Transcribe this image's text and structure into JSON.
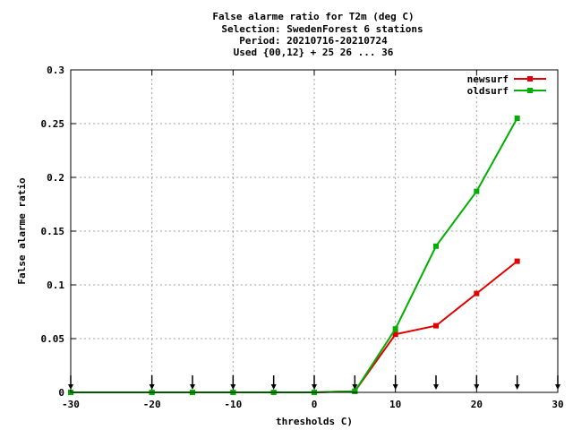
{
  "chart_data": {
    "type": "line",
    "title_lines": [
      "False alarme ratio  for T2m (deg C)",
      "Selection: SwedenForest      6 stations",
      "Period: 20210716-20210724",
      "Used {00,12} + 25 26 ... 36"
    ],
    "xlabel": "thresholds C)",
    "ylabel": "False alarme ratio",
    "xlim": [
      -30,
      30
    ],
    "ylim": [
      0,
      0.3
    ],
    "x_ticks": [
      "-30",
      "-20",
      "-10",
      "0",
      "10",
      "20",
      "30"
    ],
    "y_ticks": [
      "0",
      "0.05",
      "0.1",
      "0.15",
      "0.2",
      "0.25",
      "0.3"
    ],
    "x_tick_values": [
      -30,
      -20,
      -10,
      0,
      10,
      20,
      30
    ],
    "y_tick_values": [
      0,
      0.05,
      0.1,
      0.15,
      0.2,
      0.25,
      0.3
    ],
    "grid": true,
    "legend_position": "top-right",
    "threshold_markers_x": [
      -30,
      -20,
      -15,
      -10,
      -5,
      0,
      5,
      10,
      15,
      20,
      25,
      30
    ],
    "series": [
      {
        "name": "newsurf",
        "color": "#e00000",
        "x": [
          -30,
          -20,
          -15,
          -10,
          -5,
          0,
          5,
          10,
          15,
          20,
          25
        ],
        "values": [
          0,
          0,
          0,
          0,
          0,
          0,
          0.001,
          0.054,
          0.062,
          0.092,
          0.122
        ]
      },
      {
        "name": "oldsurf",
        "color": "#00b000",
        "x": [
          -30,
          -20,
          -15,
          -10,
          -5,
          0,
          5,
          10,
          15,
          20,
          25
        ],
        "values": [
          0,
          0,
          0,
          0,
          0,
          0,
          0.001,
          0.059,
          0.136,
          0.187,
          0.255
        ]
      }
    ]
  }
}
